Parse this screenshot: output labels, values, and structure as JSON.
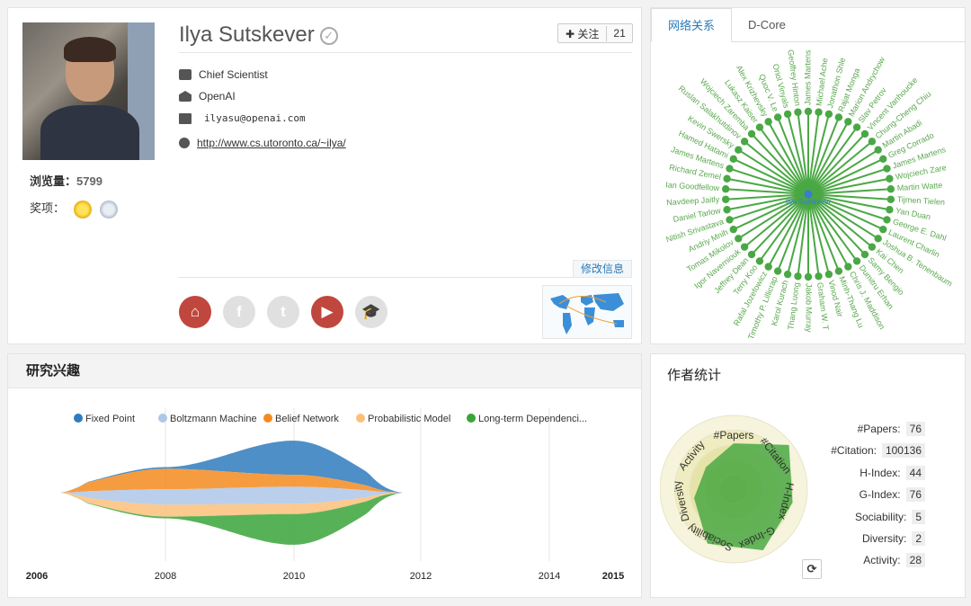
{
  "profile": {
    "name": "Ilya Sutskever",
    "views_label": "浏览量：",
    "views": "5799",
    "awards_label": "奖项：",
    "follow_label": "关注",
    "follow_count": "21",
    "position": "Chief Scientist",
    "org": "OpenAI",
    "email": "ilyasu@openai.com",
    "homepage": "http://www.cs.utoronto.ca/~ilya/",
    "edit_label": "修改信息",
    "social": [
      {
        "icon": "home-icon",
        "glyph": "⌂",
        "active": true
      },
      {
        "icon": "facebook-icon",
        "glyph": "f",
        "active": false
      },
      {
        "icon": "twitter-icon",
        "glyph": "t",
        "active": false
      },
      {
        "icon": "youtube-icon",
        "glyph": "▶",
        "active": true
      },
      {
        "icon": "scholar-icon",
        "glyph": "🎓",
        "active": false
      }
    ]
  },
  "network": {
    "tabs": [
      "网络关系",
      "D-Core"
    ],
    "center": "Ilya Sutskever",
    "color": "#4aa844",
    "nodes": [
      "James Martens",
      "Michael Ache",
      "Jonathon Shle",
      "Rajat Monga",
      "Marion Andrychow",
      "Slav Petrov",
      "Vincent Vanhoucke",
      "Chung-Cheng Chiu",
      "Martin Abadi",
      "Greg Corrado",
      "James Martens",
      "Wojciech Zare",
      "Martin Watte",
      "Tijmen Tielen",
      "Yan Duan",
      "George E. Dahl",
      "Laurent Charlin",
      "Joshua B. Tenenbaum",
      "Kai Chen",
      "Samy Bengio",
      "Dumitru Erhan",
      "Chris J. Maddison",
      "Minh-Thang Lu",
      "Vinod Nair",
      "Graham W. T",
      "Jakob Murray",
      "Thang Luong",
      "Karol Kurach",
      "Timothy P. Lillicrap",
      "Rafal Jozefowicz",
      "Terry Koo",
      "Jeffrey Dean",
      "Igor Naverniouk",
      "Tomas Mikolov",
      "Andriy Mnih",
      "Nitish Srivastava",
      "Daniel Tarlow",
      "Navdeep Jaitly",
      "Ian Goodfellow",
      "Richard Zemel",
      "James Martens",
      "Hamed Hatami",
      "Kevin Swersky",
      "Ruslan Salakhutdinov",
      "Wojciech Zaremba",
      "Lukasz Kaiser",
      "Alex Krizhevsky",
      "Quoc V. Le",
      "Oriol Vinyals",
      "Geoffrey Hinton"
    ]
  },
  "interest": {
    "title": "研究兴趣",
    "legend": [
      {
        "label": "Fixed Point",
        "color": "#2f7bbd"
      },
      {
        "label": "Boltzmann Machine",
        "color": "#aec7e8"
      },
      {
        "label": "Belief Network",
        "color": "#f58b1f"
      },
      {
        "label": "Probabilistic Model",
        "color": "#fcbf7a"
      },
      {
        "label": "Long-term Dependenci...",
        "color": "#3aa43a"
      }
    ],
    "years": [
      "2006",
      "2008",
      "2010",
      "2012",
      "2014",
      "2015"
    ]
  },
  "stats": {
    "title": "作者统计",
    "items": [
      {
        "label": "#Papers:",
        "value": "76"
      },
      {
        "label": "#Citation:",
        "value": "100136"
      },
      {
        "label": "H-Index:",
        "value": "44"
      },
      {
        "label": "G-Index:",
        "value": "76"
      },
      {
        "label": "Sociability:",
        "value": "5"
      },
      {
        "label": "Diversity:",
        "value": "2"
      },
      {
        "label": "Activity:",
        "value": "28"
      }
    ],
    "radar_axes": [
      "#Papers",
      "#Citation",
      "H-Index",
      "G-Index",
      "Sociability",
      "Diversity",
      "Activity"
    ],
    "radar_levels": [
      0.62,
      0.96,
      0.82,
      0.92,
      0.82,
      0.55,
      0.48
    ],
    "radar_color": "#4aa844"
  },
  "chart_data": {
    "type": "area",
    "title": "研究兴趣",
    "x": [
      2006,
      2008,
      2010,
      2012,
      2014,
      2015
    ],
    "series": [
      {
        "name": "Fixed Point",
        "values": [
          0,
          2,
          40,
          0,
          0,
          0
        ]
      },
      {
        "name": "Boltzmann Machine",
        "values": [
          2,
          18,
          20,
          0,
          0,
          0
        ]
      },
      {
        "name": "Belief Network",
        "values": [
          3,
          24,
          14,
          0,
          0,
          0
        ]
      },
      {
        "name": "Probabilistic Model",
        "values": [
          2,
          14,
          12,
          0,
          0,
          0
        ]
      },
      {
        "name": "Long-term Dependenci...",
        "values": [
          0,
          2,
          36,
          0,
          0,
          0
        ]
      }
    ]
  }
}
